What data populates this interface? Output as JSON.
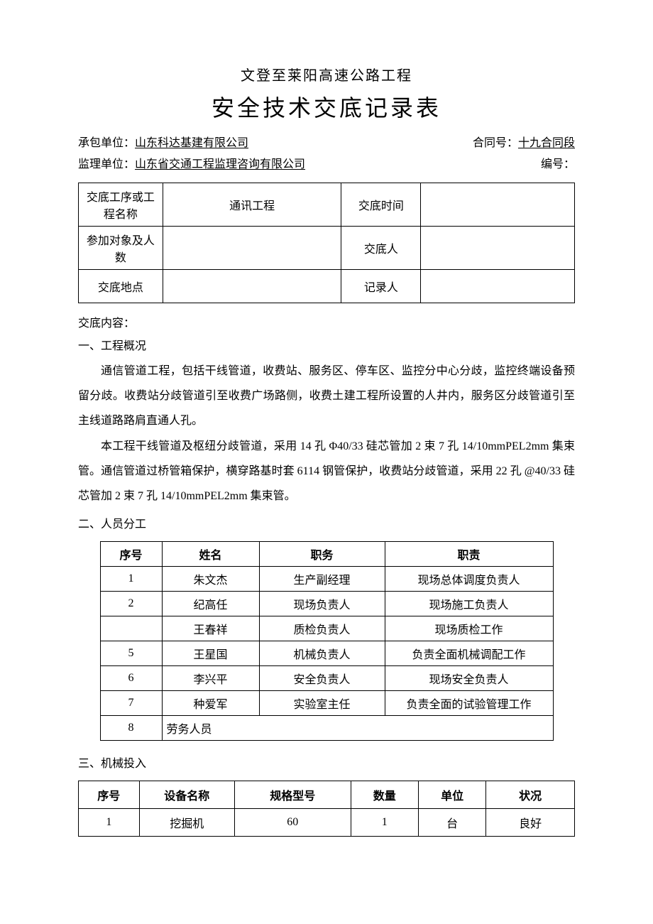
{
  "header": {
    "subtitle": "文登至莱阳高速公路工程",
    "title": "安全技术交底记录表",
    "contractor_label": "承包单位：",
    "contractor_value": "山东科达基建有限公司",
    "contract_no_label": "合同号：",
    "contract_no_value": "十九合同段",
    "supervisor_label": "监理单位：",
    "supervisor_value": "山东省交通工程监理咨询有限公司",
    "doc_no_label": "编号：",
    "doc_no_value": ""
  },
  "info_table": {
    "r1c1": "交底工序或工程名称",
    "r1c2": "通讯工程",
    "r1c3": "交底时间",
    "r1c4": "",
    "r2c1": "参加对象及人数",
    "r2c2": "",
    "r2c3": "交底人",
    "r2c4": "",
    "r3c1": "交底地点",
    "r3c2": "",
    "r3c3": "记录人",
    "r3c4": ""
  },
  "content": {
    "content_label": "交底内容：",
    "section1_title": "一、工程概况",
    "para1": "通信管道工程，包括干线管道，收费站、服务区、停车区、监控分中心分歧，监控终端设备预留分歧。收费站分歧管道引至收费广场路侧，收费土建工程所设置的人井内，服务区分歧管道引至主线道路路肩直通人孔。",
    "para2": "本工程干线管道及枢纽分歧管道，采用 14 孔 Φ40/33 硅芯管加 2 束 7 孔 14/10mmPEL2mm 集束管。通信管道过桥管箱保护，横穿路基时套 6114 钢管保护，收费站分歧管道，采用 22 孔 @40/33 硅芯管加 2 束 7 孔 14/10mmPEL2mm 集束管。",
    "section2_title": "二、人员分工",
    "section3_title": "三、机械投入"
  },
  "personnel_table": {
    "headers": [
      "序号",
      "姓名",
      "职务",
      "职责"
    ],
    "rows": [
      [
        "1",
        "朱文杰",
        "生产副经理",
        "现场总体调度负责人"
      ],
      [
        "2",
        "纪高任",
        "现场负责人",
        "现场施工负责人"
      ],
      [
        "",
        "王春祥",
        "质检负责人",
        "现场质检工作"
      ],
      [
        "5",
        "王星国",
        "机械负责人",
        "负责全面机械调配工作"
      ],
      [
        "6",
        "李兴平",
        "安全负责人",
        "现场安全负责人"
      ],
      [
        "7",
        "种爱军",
        "实验室主任",
        "负责全面的试验管理工作"
      ]
    ],
    "last_row_seq": "8",
    "last_row_merged": "劳务人员"
  },
  "machine_table": {
    "headers": [
      "序号",
      "设备名称",
      "规格型号",
      "数量",
      "单位",
      "状况"
    ],
    "rows": [
      [
        "1",
        "挖掘机",
        "60",
        "1",
        "台",
        "良好"
      ]
    ]
  },
  "style": {
    "font_family": "SimSun",
    "background_color": "#ffffff",
    "text_color": "#000000",
    "border_color": "#000000",
    "title_fontsize": 32,
    "subtitle_fontsize": 20,
    "body_fontsize": 16,
    "line_height": 2.2
  }
}
